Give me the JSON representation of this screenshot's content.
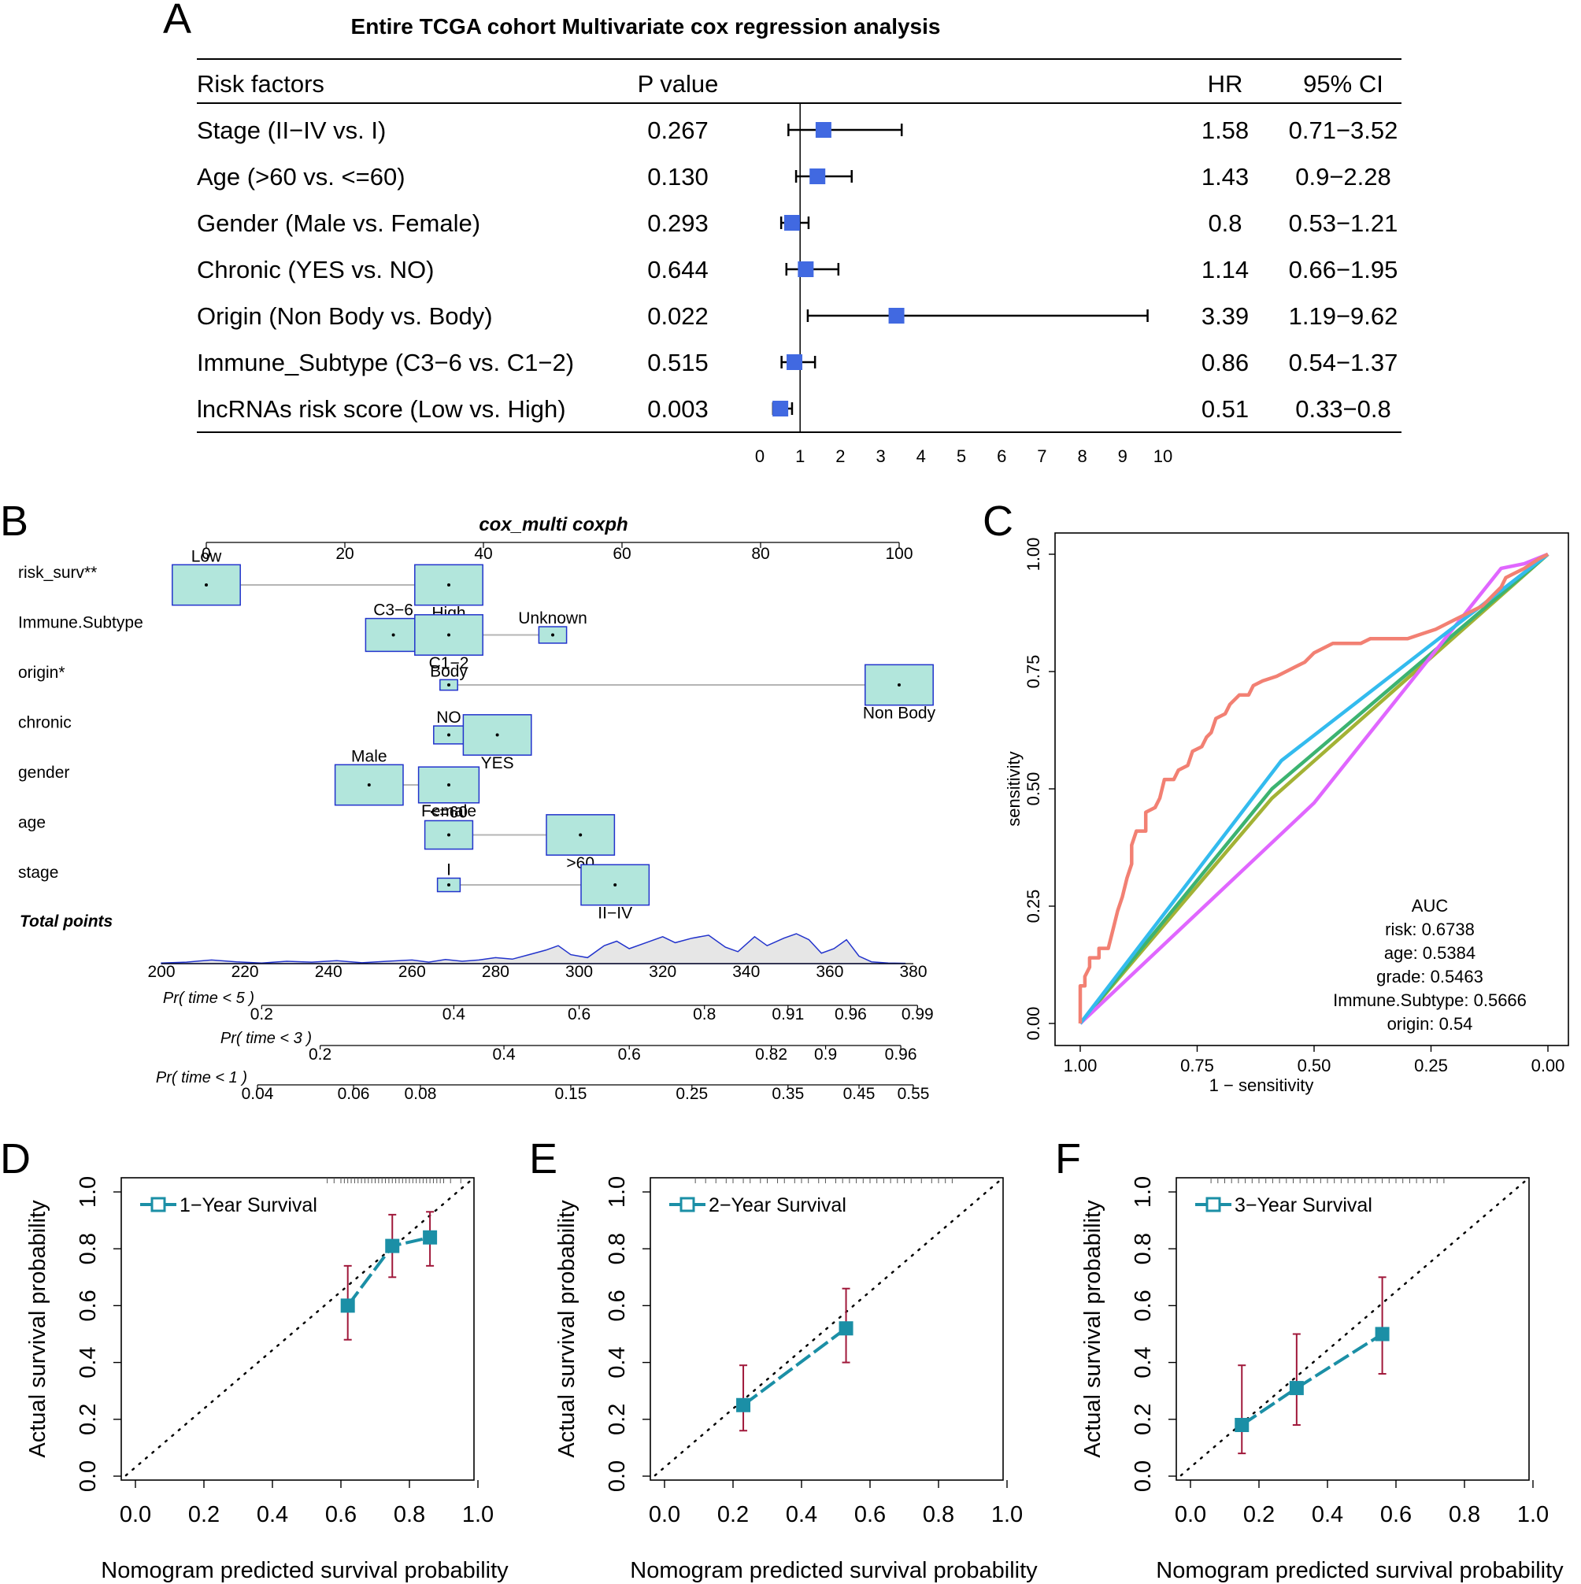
{
  "colors": {
    "forest": "#4169e1",
    "nomo_fill": "#b2e6dc",
    "nomo_edge": "#2233cc",
    "density": "#2233cc",
    "cal_line": "#1b8fa6",
    "cal_err": "#a0183a"
  },
  "panels": {
    "a": "A",
    "b": "B",
    "c": "C",
    "d": "D",
    "e": "E",
    "f": "F"
  },
  "chart_data": [
    {
      "type": "forest",
      "title": "Entire TCGA cohort Multivariate cox regression analysis",
      "headers": {
        "factor": "Risk factors",
        "p": "P value",
        "hr": "HR",
        "ci": "95% CI"
      },
      "xlim": [
        0,
        10
      ],
      "xticks": [
        0,
        1,
        2,
        3,
        4,
        5,
        6,
        7,
        8,
        9,
        10
      ],
      "rows": [
        {
          "label": "Stage (II−IV vs. I)",
          "p": "0.267",
          "hr": "1.58",
          "ci": "0.71−3.52",
          "hr_v": 1.58,
          "lo": 0.71,
          "hi": 3.52
        },
        {
          "label": "Age (>60 vs. <=60)",
          "p": "0.130",
          "hr": "1.43",
          "ci": "0.9−2.28",
          "hr_v": 1.43,
          "lo": 0.9,
          "hi": 2.28
        },
        {
          "label": "Gender (Male vs. Female)",
          "p": "0.293",
          "hr": "0.8",
          "ci": "0.53−1.21",
          "hr_v": 0.8,
          "lo": 0.53,
          "hi": 1.21
        },
        {
          "label": "Chronic (YES vs. NO)",
          "p": "0.644",
          "hr": "1.14",
          "ci": "0.66−1.95",
          "hr_v": 1.14,
          "lo": 0.66,
          "hi": 1.95
        },
        {
          "label": "Origin (Non Body vs. Body)",
          "p": "0.022",
          "hr": "3.39",
          "ci": "1.19−9.62",
          "hr_v": 3.39,
          "lo": 1.19,
          "hi": 9.62
        },
        {
          "label": "Immune_Subtype (C3−6 vs. C1−2)",
          "p": "0.515",
          "hr": "0.86",
          "ci": "0.54−1.37",
          "hr_v": 0.86,
          "lo": 0.54,
          "hi": 1.37
        },
        {
          "label": "lncRNAs risk score (Low vs. High)",
          "p": "0.003",
          "hr": "0.51",
          "ci": "0.33−0.8",
          "hr_v": 0.51,
          "lo": 0.33,
          "hi": 0.8
        }
      ]
    },
    {
      "type": "nomogram",
      "title": "cox_multi coxph",
      "points_axis": {
        "range": [
          0,
          100
        ],
        "ticks": [
          0,
          20,
          40,
          60,
          80,
          100
        ]
      },
      "variables": [
        {
          "name": "risk_surv**",
          "levels": [
            {
              "label": "Low",
              "points": 0,
              "size": 1.35,
              "above": true
            },
            {
              "label": "High",
              "points": 35,
              "size": 1.35,
              "above": false
            }
          ]
        },
        {
          "name": "Immune.Subtype",
          "levels": [
            {
              "label": "C3−6",
              "points": 27,
              "size": 1.1,
              "above": true
            },
            {
              "label": "C1−2",
              "points": 35,
              "size": 1.35,
              "above": false
            },
            {
              "label": "Unknown",
              "points": 50,
              "size": 0.55,
              "above": true
            }
          ]
        },
        {
          "name": "origin*",
          "levels": [
            {
              "label": "Body",
              "points": 35,
              "size": 0.35,
              "above": true
            },
            {
              "label": "Non Body",
              "points": 100,
              "size": 1.35,
              "above": false
            }
          ]
        },
        {
          "name": "chronic",
          "levels": [
            {
              "label": "NO",
              "points": 35,
              "size": 0.6,
              "above": true
            },
            {
              "label": "YES",
              "points": 42,
              "size": 1.35,
              "above": false
            }
          ]
        },
        {
          "name": "gender",
          "levels": [
            {
              "label": "Male",
              "points": 23.5,
              "size": 1.35,
              "above": true
            },
            {
              "label": "Female",
              "points": 35,
              "size": 1.2,
              "above": false
            }
          ]
        },
        {
          "name": "age",
          "levels": [
            {
              "label": "<=60",
              "points": 35,
              "size": 0.95,
              "above": true
            },
            {
              "label": ">60",
              "points": 54,
              "size": 1.35,
              "above": false
            }
          ]
        },
        {
          "name": "stage",
          "levels": [
            {
              "label": "I",
              "points": 35,
              "size": 0.45,
              "above": true
            },
            {
              "label": "II−IV",
              "points": 59,
              "size": 1.35,
              "above": false
            }
          ]
        }
      ],
      "total_label": "Total points",
      "total_axis": {
        "range": [
          200,
          380
        ],
        "ticks": [
          200,
          220,
          240,
          260,
          280,
          300,
          320,
          340,
          360,
          380
        ]
      },
      "density": [
        [
          200,
          0.02
        ],
        [
          206,
          0.05
        ],
        [
          212,
          0.12
        ],
        [
          218,
          0.06
        ],
        [
          224,
          0.02
        ],
        [
          230,
          0.08
        ],
        [
          236,
          0.05
        ],
        [
          242,
          0.1
        ],
        [
          248,
          0.03
        ],
        [
          254,
          0.08
        ],
        [
          260,
          0.12
        ],
        [
          264,
          0.05
        ],
        [
          268,
          0.14
        ],
        [
          272,
          0.08
        ],
        [
          276,
          0.12
        ],
        [
          280,
          0.2
        ],
        [
          284,
          0.15
        ],
        [
          288,
          0.3
        ],
        [
          292,
          0.45
        ],
        [
          295,
          0.6
        ],
        [
          298,
          0.3
        ],
        [
          302,
          0.2
        ],
        [
          306,
          0.6
        ],
        [
          309,
          0.75
        ],
        [
          312,
          0.5
        ],
        [
          316,
          0.7
        ],
        [
          320,
          0.9
        ],
        [
          323,
          0.7
        ],
        [
          327,
          0.85
        ],
        [
          331,
          0.95
        ],
        [
          335,
          0.55
        ],
        [
          338,
          0.4
        ],
        [
          342,
          0.9
        ],
        [
          345,
          0.6
        ],
        [
          349,
          0.85
        ],
        [
          352,
          1.0
        ],
        [
          355,
          0.8
        ],
        [
          358,
          0.35
        ],
        [
          361,
          0.5
        ],
        [
          364,
          0.8
        ],
        [
          367,
          0.25
        ],
        [
          370,
          0.06
        ],
        [
          374,
          0.02
        ],
        [
          378,
          0.01
        ]
      ],
      "prob_axes": [
        {
          "label": "Pr( time < 5 )",
          "ticks": [
            {
              "t": "0.2",
              "v": 224
            },
            {
              "t": "0.4",
              "v": 270
            },
            {
              "t": "0.6",
              "v": 300
            },
            {
              "t": "0.8",
              "v": 330
            },
            {
              "t": "0.91",
              "v": 350
            },
            {
              "t": "0.96",
              "v": 365
            },
            {
              "t": "0.99",
              "v": 381
            }
          ]
        },
        {
          "label": "Pr( time < 3 )",
          "ticks": [
            {
              "t": "0.2",
              "v": 238
            },
            {
              "t": "0.4",
              "v": 282
            },
            {
              "t": "0.6",
              "v": 312
            },
            {
              "t": "0.82",
              "v": 346
            },
            {
              "t": "0.9",
              "v": 359
            },
            {
              "t": "0.96",
              "v": 377
            }
          ]
        },
        {
          "label": "Pr( time < 1 )",
          "ticks": [
            {
              "t": "0.04",
              "v": 223
            },
            {
              "t": "0.06",
              "v": 246
            },
            {
              "t": "0.08",
              "v": 262
            },
            {
              "t": "0.15",
              "v": 298
            },
            {
              "t": "0.25",
              "v": 327
            },
            {
              "t": "0.35",
              "v": 350
            },
            {
              "t": "0.45",
              "v": 367
            },
            {
              "t": "0.55",
              "v": 380
            }
          ]
        }
      ]
    },
    {
      "type": "line",
      "subtype": "roc",
      "xlabel": "1 − sensitivity",
      "ylabel": "sensitivity",
      "xlim": [
        1,
        0
      ],
      "ylim": [
        0,
        1
      ],
      "ticks": [
        "1.00",
        "0.75",
        "0.50",
        "0.25",
        "0.00"
      ],
      "legend_title": "AUC",
      "series": [
        {
          "name": "risk",
          "legend": "risk:  0.6738",
          "color": "#f28073",
          "points": [
            [
              1,
              0
            ],
            [
              1,
              0.08
            ],
            [
              0.99,
              0.08
            ],
            [
              0.99,
              0.1
            ],
            [
              0.98,
              0.12
            ],
            [
              0.98,
              0.14
            ],
            [
              0.96,
              0.14
            ],
            [
              0.96,
              0.16
            ],
            [
              0.94,
              0.16
            ],
            [
              0.93,
              0.2
            ],
            [
              0.92,
              0.24
            ],
            [
              0.91,
              0.27
            ],
            [
              0.9,
              0.31
            ],
            [
              0.89,
              0.34
            ],
            [
              0.89,
              0.38
            ],
            [
              0.88,
              0.41
            ],
            [
              0.86,
              0.41
            ],
            [
              0.86,
              0.45
            ],
            [
              0.84,
              0.46
            ],
            [
              0.83,
              0.48
            ],
            [
              0.82,
              0.52
            ],
            [
              0.8,
              0.52
            ],
            [
              0.79,
              0.54
            ],
            [
              0.77,
              0.55
            ],
            [
              0.76,
              0.58
            ],
            [
              0.74,
              0.59
            ],
            [
              0.73,
              0.61
            ],
            [
              0.72,
              0.62
            ],
            [
              0.71,
              0.65
            ],
            [
              0.69,
              0.66
            ],
            [
              0.68,
              0.68
            ],
            [
              0.67,
              0.69
            ],
            [
              0.66,
              0.7
            ],
            [
              0.64,
              0.7
            ],
            [
              0.63,
              0.72
            ],
            [
              0.61,
              0.73
            ],
            [
              0.58,
              0.74
            ],
            [
              0.56,
              0.75
            ],
            [
              0.54,
              0.76
            ],
            [
              0.52,
              0.77
            ],
            [
              0.5,
              0.79
            ],
            [
              0.48,
              0.8
            ],
            [
              0.46,
              0.81
            ],
            [
              0.4,
              0.81
            ],
            [
              0.38,
              0.82
            ],
            [
              0.3,
              0.82
            ],
            [
              0.27,
              0.83
            ],
            [
              0.24,
              0.84
            ],
            [
              0.22,
              0.85
            ],
            [
              0.2,
              0.86
            ],
            [
              0.18,
              0.87
            ],
            [
              0.16,
              0.88
            ],
            [
              0.14,
              0.89
            ],
            [
              0.12,
              0.91
            ],
            [
              0.1,
              0.93
            ],
            [
              0.09,
              0.95
            ],
            [
              0.07,
              0.96
            ],
            [
              0.05,
              0.97
            ],
            [
              0.02,
              0.99
            ],
            [
              0,
              1
            ]
          ]
        },
        {
          "name": "age",
          "legend": "age:  0.5384",
          "color": "#a3b235",
          "points": [
            [
              1,
              0
            ],
            [
              0.59,
              0.48
            ],
            [
              0,
              1
            ]
          ]
        },
        {
          "name": "grade",
          "legend": "grade:  0.5463",
          "color": "#3cb371",
          "points": [
            [
              1,
              0
            ],
            [
              0.59,
              0.5
            ],
            [
              0,
              1
            ]
          ]
        },
        {
          "name": "Immune.Subtype",
          "legend": "Immune.Subtype:  0.5666",
          "color": "#33bbee",
          "points": [
            [
              1,
              0
            ],
            [
              0.57,
              0.56
            ],
            [
              0,
              1
            ]
          ]
        },
        {
          "name": "origin",
          "legend": "origin:  0.54",
          "color": "#e066ff",
          "points": [
            [
              1,
              0
            ],
            [
              0.5,
              0.47
            ],
            [
              0.1,
              0.97
            ],
            [
              0.05,
              0.98
            ],
            [
              0,
              1
            ]
          ]
        }
      ]
    },
    {
      "type": "scatter",
      "subtype": "calibration",
      "legend": "1−Year Survival",
      "xlabel": "Nomogram predicted survival probability",
      "ylabel": "Actual survival probability",
      "xlim": [
        0,
        1
      ],
      "ylim": [
        0,
        1
      ],
      "ticks": [
        "0.0",
        "0.2",
        "0.4",
        "0.6",
        "0.8",
        "1.0"
      ],
      "points": [
        {
          "x": 0.62,
          "y": 0.6,
          "lo": 0.48,
          "hi": 0.74
        },
        {
          "x": 0.75,
          "y": 0.81,
          "lo": 0.7,
          "hi": 0.92
        },
        {
          "x": 0.86,
          "y": 0.84,
          "lo": 0.74,
          "hi": 0.93
        }
      ],
      "rug": [
        0.56,
        0.58,
        0.6,
        0.61,
        0.62,
        0.63,
        0.64,
        0.65,
        0.66,
        0.67,
        0.68,
        0.69,
        0.7,
        0.71,
        0.72,
        0.73,
        0.74,
        0.75,
        0.76,
        0.77,
        0.78,
        0.79,
        0.8,
        0.81,
        0.82,
        0.83,
        0.84,
        0.85,
        0.86,
        0.87,
        0.88,
        0.89,
        0.9,
        0.92,
        0.95
      ]
    },
    {
      "type": "scatter",
      "subtype": "calibration",
      "legend": "2−Year Survival",
      "xlabel": "Nomogram predicted survival probability",
      "ylabel": "Actual survival probability",
      "xlim": [
        0,
        1
      ],
      "ylim": [
        0,
        1
      ],
      "ticks": [
        "0.0",
        "0.2",
        "0.4",
        "0.6",
        "0.8",
        "1.0"
      ],
      "points": [
        {
          "x": 0.23,
          "y": 0.25,
          "lo": 0.16,
          "hi": 0.39
        },
        {
          "x": 0.53,
          "y": 0.52,
          "lo": 0.4,
          "hi": 0.66
        }
      ],
      "rug": [
        0.09,
        0.12,
        0.15,
        0.18,
        0.2,
        0.23,
        0.25,
        0.28,
        0.3,
        0.33,
        0.35,
        0.38,
        0.4,
        0.42,
        0.45,
        0.47,
        0.5,
        0.52,
        0.54,
        0.56,
        0.58,
        0.6,
        0.62,
        0.64,
        0.66,
        0.68,
        0.7,
        0.72,
        0.75,
        0.78,
        0.8,
        0.82,
        0.84
      ]
    },
    {
      "type": "scatter",
      "subtype": "calibration",
      "legend": "3−Year Survival",
      "xlabel": "Nomogram predicted survival probability",
      "ylabel": "Actual survival probability",
      "xlim": [
        0,
        1
      ],
      "ylim": [
        0,
        1
      ],
      "ticks": [
        "0.0",
        "0.2",
        "0.4",
        "0.6",
        "0.8",
        "1.0"
      ],
      "points": [
        {
          "x": 0.15,
          "y": 0.18,
          "lo": 0.08,
          "hi": 0.39
        },
        {
          "x": 0.31,
          "y": 0.31,
          "lo": 0.18,
          "hi": 0.5
        },
        {
          "x": 0.56,
          "y": 0.5,
          "lo": 0.36,
          "hi": 0.7
        }
      ],
      "rug": [
        0.06,
        0.08,
        0.1,
        0.12,
        0.14,
        0.16,
        0.18,
        0.2,
        0.22,
        0.24,
        0.26,
        0.28,
        0.3,
        0.32,
        0.34,
        0.36,
        0.38,
        0.4,
        0.42,
        0.44,
        0.46,
        0.48,
        0.5,
        0.52,
        0.54,
        0.56,
        0.58,
        0.6,
        0.62,
        0.64,
        0.66,
        0.68,
        0.7,
        0.72,
        0.74
      ]
    }
  ]
}
